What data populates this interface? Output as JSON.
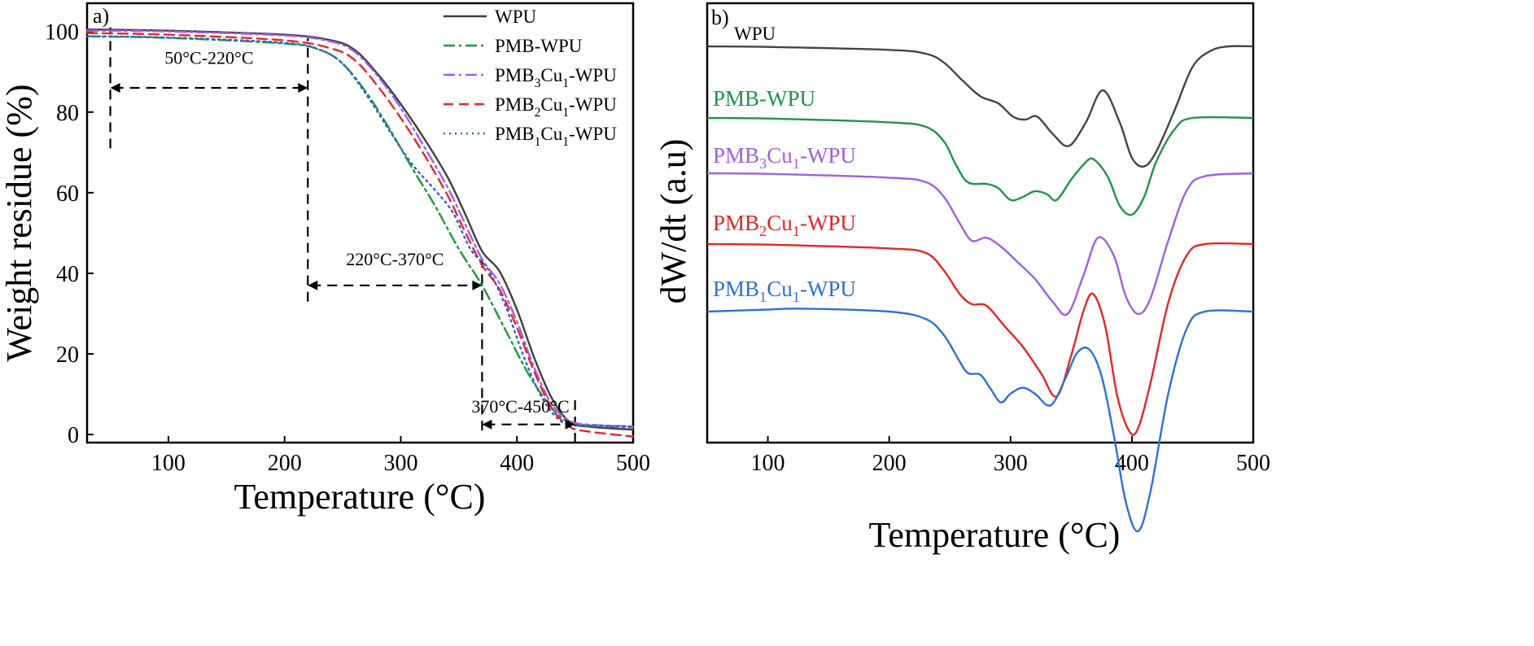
{
  "chart_data": [
    {
      "panel": "a)",
      "type": "line",
      "xlabel": "Temperature (°C)",
      "ylabel": "Weight residue (%)",
      "xlim": [
        30,
        500
      ],
      "ylim": [
        -2,
        107
      ],
      "xticks": [
        100,
        200,
        300,
        400,
        500
      ],
      "yticks": [
        0,
        20,
        40,
        60,
        80,
        100
      ],
      "legend_position": "top-right",
      "series": [
        {
          "name": "WPU",
          "name_base": "WPU",
          "name_sub1": "",
          "name_mid": "",
          "name_sub2": "",
          "name_tail": "",
          "color": "#404040",
          "dash": "solid",
          "x": [
            30,
            100,
            200,
            240,
            260,
            280,
            300,
            320,
            340,
            355,
            370,
            385,
            400,
            415,
            430,
            445,
            460,
            500
          ],
          "y": [
            100.5,
            100.2,
            99.2,
            97.8,
            95.5,
            89.5,
            82.0,
            73.5,
            64.0,
            55.0,
            45.5,
            40.5,
            31.0,
            19.0,
            9.0,
            3.2,
            2.0,
            1.2
          ]
        },
        {
          "name": "PMB-WPU",
          "name_base": "PMB-WPU",
          "name_sub1": "",
          "name_mid": "",
          "name_sub2": "",
          "name_tail": "",
          "color": "#1a9a3a",
          "dash": "dashdot",
          "x": [
            30,
            100,
            200,
            230,
            250,
            270,
            290,
            310,
            330,
            350,
            370,
            390,
            410,
            430,
            445,
            460,
            500
          ],
          "y": [
            98.8,
            98.4,
            97.0,
            95.5,
            92.0,
            85.0,
            76.0,
            66.0,
            56.5,
            46.0,
            37.0,
            26.0,
            15.0,
            6.5,
            3.0,
            2.2,
            1.8
          ]
        },
        {
          "name": "PMB3Cu1-WPU",
          "name_base": "PMB",
          "name_sub1": "3",
          "name_mid": "Cu",
          "name_sub2": "1",
          "name_tail": "-WPU",
          "color": "#a55de6",
          "dash": "dashdot",
          "x": [
            30,
            100,
            200,
            240,
            260,
            280,
            300,
            320,
            340,
            355,
            370,
            385,
            400,
            415,
            430,
            445,
            460,
            500
          ],
          "y": [
            100.2,
            100.0,
            99.0,
            97.5,
            95.0,
            89.0,
            81.0,
            71.5,
            61.5,
            52.5,
            43.5,
            37.5,
            28.0,
            16.5,
            7.5,
            3.5,
            2.5,
            2.0
          ]
        },
        {
          "name": "PMB2Cu1-WPU",
          "name_base": "PMB",
          "name_sub1": "2",
          "name_mid": "Cu",
          "name_sub2": "1",
          "name_tail": "-WPU",
          "color": "#e8262b",
          "dash": "dashed",
          "x": [
            30,
            100,
            200,
            240,
            260,
            280,
            300,
            320,
            340,
            355,
            370,
            385,
            400,
            415,
            430,
            445,
            460,
            500
          ],
          "y": [
            99.6,
            99.2,
            97.8,
            95.8,
            93.0,
            86.5,
            78.5,
            69.5,
            59.5,
            50.5,
            42.0,
            36.0,
            26.5,
            15.5,
            6.5,
            2.0,
            0.8,
            -0.5
          ]
        },
        {
          "name": "PMB1Cu1-WPU",
          "name_base": "PMB",
          "name_sub1": "1",
          "name_mid": "Cu",
          "name_sub2": "1",
          "name_tail": "-WPU",
          "color": "#2c5fd8",
          "dash": "dotted",
          "x": [
            30,
            100,
            200,
            230,
            250,
            270,
            290,
            310,
            330,
            345,
            360,
            375,
            390,
            405,
            420,
            435,
            450,
            500
          ],
          "y": [
            98.8,
            98.5,
            97.2,
            95.5,
            92.0,
            84.5,
            75.5,
            67.0,
            60.5,
            55.0,
            46.0,
            41.0,
            32.0,
            20.0,
            10.0,
            4.0,
            2.5,
            2.0
          ]
        }
      ],
      "annotations": [
        {
          "text": "50°C-220°C",
          "x_from": 50,
          "x_to": 220,
          "y": 86,
          "label_y": 92
        },
        {
          "text": "220°C-370°C",
          "x_from": 220,
          "x_to": 370,
          "y": 37,
          "label_y": 42
        },
        {
          "text": "370°C-450°C",
          "x_from": 370,
          "x_to": 450,
          "y": 2.5,
          "label_y": 5.5
        }
      ],
      "guide_lines": [
        {
          "x": 50,
          "y_from": 71,
          "y_to": 101
        },
        {
          "x": 220,
          "y_from": 33,
          "y_to": 99
        },
        {
          "x": 370,
          "y_from": 1,
          "y_to": 45
        },
        {
          "x": 450,
          "y_from": -2,
          "y_to": 9
        }
      ]
    },
    {
      "panel": "b)",
      "type": "line",
      "xlabel": "Temperature (°C)",
      "ylabel": "dW/dt (a.u)",
      "xlim": [
        50,
        500
      ],
      "xticks": [
        100,
        200,
        300,
        400,
        500
      ],
      "series": [
        {
          "name": "WPU",
          "name_base": "WPU",
          "name_sub1": "",
          "name_mid": "",
          "name_sub2": "",
          "name_tail": "",
          "color": "#444444",
          "baseline": 0,
          "x": [
            50,
            100,
            200,
            230,
            245,
            260,
            275,
            290,
            302,
            312,
            322,
            335,
            348,
            362,
            376,
            390,
            400,
            410,
            420,
            435,
            450,
            465,
            480,
            500
          ],
          "y": [
            0,
            -0.2,
            -1.2,
            -2.5,
            -5.5,
            -11.5,
            -17,
            -19.5,
            -24,
            -25,
            -24,
            -30,
            -34,
            -26,
            -15,
            -26,
            -38,
            -41,
            -36,
            -22,
            -7,
            -1.5,
            0,
            0
          ]
        },
        {
          "name": "PMB-WPU",
          "name_base": "PMB-WPU",
          "name_sub1": "",
          "name_mid": "",
          "name_sub2": "",
          "name_tail": "",
          "color": "#1f9447",
          "baseline": 0,
          "x": [
            50,
            100,
            200,
            230,
            245,
            255,
            265,
            280,
            290,
            300,
            310,
            320,
            330,
            338,
            350,
            360,
            368,
            380,
            390,
            400,
            410,
            420,
            435,
            450,
            500
          ],
          "y": [
            0,
            -0.2,
            -1.5,
            -3,
            -8,
            -16,
            -22,
            -22.5,
            -24,
            -28,
            -27,
            -25,
            -26,
            -28,
            -21,
            -16,
            -14,
            -20,
            -30,
            -33,
            -27,
            -15,
            -4,
            0,
            0
          ]
        },
        {
          "name": "PMB3Cu1-WPU",
          "name_base": "PMB",
          "name_sub1": "3",
          "name_mid": "Cu",
          "name_sub2": "1",
          "name_tail": "-WPU",
          "color": "#a15ee0",
          "baseline": 0,
          "x": [
            50,
            100,
            200,
            230,
            245,
            258,
            268,
            280,
            292,
            305,
            320,
            335,
            347,
            360,
            372,
            385,
            395,
            405,
            415,
            430,
            445,
            460,
            500
          ],
          "y": [
            0,
            -0.2,
            -1.5,
            -3,
            -8,
            -17,
            -23,
            -22,
            -25,
            -30,
            -36,
            -44,
            -48,
            -35,
            -22,
            -28,
            -42,
            -48,
            -43,
            -23,
            -6,
            -1,
            0
          ]
        },
        {
          "name": "PMB2Cu1-WPU",
          "name_base": "PMB",
          "name_sub1": "2",
          "name_mid": "Cu",
          "name_sub2": "1",
          "name_tail": "-WPU",
          "color": "#e02726",
          "baseline": 0,
          "x": [
            50,
            100,
            200,
            230,
            245,
            258,
            268,
            280,
            295,
            310,
            325,
            338,
            350,
            360,
            368,
            378,
            388,
            398,
            405,
            415,
            430,
            445,
            460,
            500
          ],
          "y": [
            0,
            -0.2,
            -1.5,
            -3,
            -9,
            -17,
            -20.5,
            -21,
            -28,
            -35,
            -44,
            -52,
            -38,
            -23,
            -17,
            -28,
            -52,
            -64,
            -63,
            -48,
            -20,
            -4,
            0,
            0
          ]
        },
        {
          "name": "PMB1Cu1-WPU",
          "name_base": "PMB",
          "name_sub1": "1",
          "name_mid": "Cu",
          "name_sub2": "1",
          "name_tail": "-WPU",
          "color": "#2f6fd8",
          "baseline": 0,
          "x": [
            50,
            100,
            130,
            200,
            230,
            245,
            258,
            265,
            275,
            283,
            292,
            300,
            310,
            320,
            333,
            345,
            355,
            365,
            375,
            385,
            395,
            405,
            415,
            430,
            445,
            460,
            500
          ],
          "y": [
            0,
            0.7,
            1.0,
            0,
            -2.5,
            -8,
            -17,
            -21,
            -21.5,
            -26,
            -31,
            -28,
            -26,
            -28,
            -32,
            -23,
            -14,
            -13,
            -22,
            -42,
            -65,
            -75,
            -62,
            -28,
            -6,
            0,
            0
          ]
        }
      ]
    }
  ]
}
